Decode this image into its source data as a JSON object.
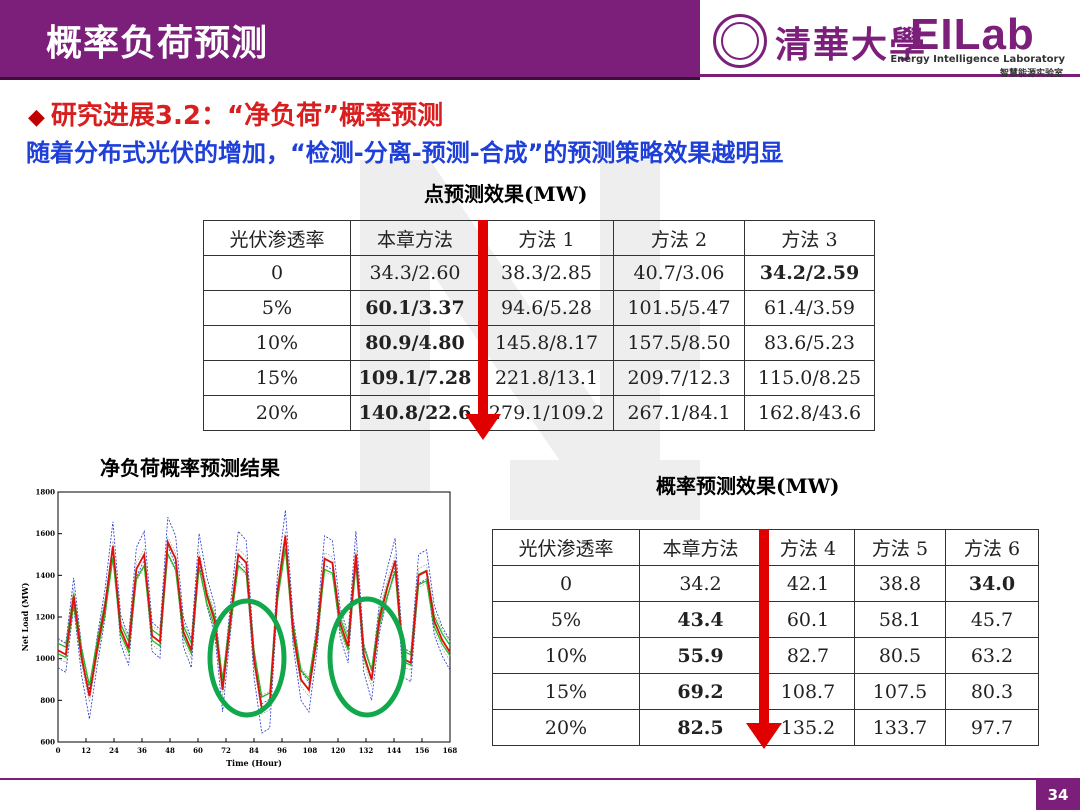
{
  "header": {
    "title": "概率负荷预测"
  },
  "logo": {
    "university": "清華大學",
    "lab_word": "EILab",
    "lab_en": "Energy Intelligence Laboratory",
    "lab_cn": "智慧能源实验室"
  },
  "slide": {
    "heading1": "研究进展3.2：“净负荷”概率预测",
    "heading2": "随着分布式光伏的增加，“检测-分离-预测-合成”的预测策略效果越明显",
    "point_caption": "点预测效果(MW)",
    "prob_caption": "概率预测效果(MW)",
    "chart_caption": "净负荷概率预测结果"
  },
  "table_point": {
    "headers": [
      "光伏渗透率",
      "本章方法",
      "方法 1",
      "方法 2",
      "方法 3"
    ],
    "rows": [
      [
        "0",
        "34.3/2.60",
        "38.3/2.85",
        "40.7/3.06",
        "34.2/2.59"
      ],
      [
        "5%",
        "60.1/3.37",
        "94.6/5.28",
        "101.5/5.47",
        "61.4/3.59"
      ],
      [
        "10%",
        "80.9/4.80",
        "145.8/8.17",
        "157.5/8.50",
        "83.6/5.23"
      ],
      [
        "15%",
        "109.1/7.28",
        "221.8/13.1",
        "209.7/12.3",
        "115.0/8.25"
      ],
      [
        "20%",
        "140.8/22.6",
        "279.1/109.2",
        "267.1/84.1",
        "162.8/43.6"
      ]
    ]
  },
  "table_prob": {
    "headers": [
      "光伏渗透率",
      "本章方法",
      "方法 4",
      "方法 5",
      "方法 6"
    ],
    "rows": [
      [
        "0",
        "34.2",
        "42.1",
        "38.8",
        "34.0"
      ],
      [
        "5%",
        "43.4",
        "60.1",
        "58.1",
        "45.7"
      ],
      [
        "10%",
        "55.9",
        "82.7",
        "80.5",
        "63.2"
      ],
      [
        "15%",
        "69.2",
        "108.7",
        "107.5",
        "80.3"
      ],
      [
        "20%",
        "82.5",
        "135.2",
        "133.7",
        "97.7"
      ]
    ]
  },
  "chart_data": {
    "type": "line",
    "title": "",
    "xlabel": "Time (Hour)",
    "ylabel": "Net Load (MW)",
    "xlim": [
      0,
      168
    ],
    "ylim": [
      600,
      1800
    ],
    "xticks": [
      0,
      12,
      24,
      36,
      48,
      60,
      72,
      84,
      96,
      108,
      120,
      132,
      144,
      156,
      168
    ],
    "yticks": [
      600,
      800,
      1000,
      1200,
      1400,
      1600,
      1800
    ],
    "series": [
      {
        "values": [
          1040,
          1020,
          1300,
          1010,
          820,
          1050,
          1250,
          1540,
          1140,
          1050,
          1430,
          1500,
          1110,
          1080,
          1560,
          1480,
          1130,
          1040,
          1490,
          1300,
          1180,
          850,
          1190,
          1500,
          1460,
          1000,
          760,
          780,
          1320,
          1590,
          1130,
          900,
          850,
          1100,
          1480,
          1460,
          1170,
          1060,
          1500,
          1020,
          900,
          1190,
          1340,
          1470,
          1000,
          980,
          1400,
          1420,
          1180,
          1090,
          1030
        ]
      }
    ]
  },
  "page_number": "34"
}
